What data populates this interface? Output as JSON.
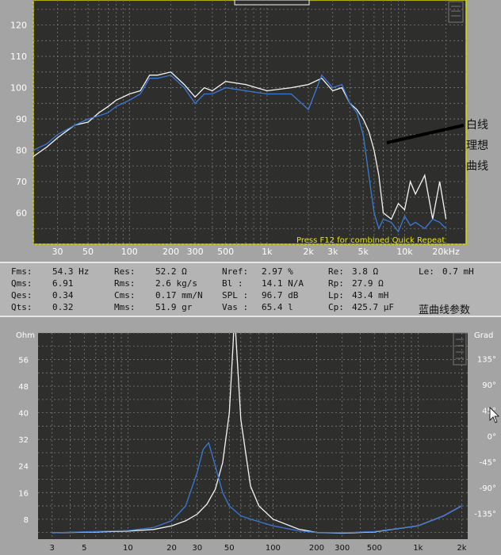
{
  "top_chart": {
    "y_ticks": [
      "120",
      "110",
      "100",
      "90",
      "80",
      "70",
      "60"
    ],
    "x_ticks": [
      "30",
      "50",
      "100",
      "200",
      "300",
      "500",
      "1k",
      "2k",
      "3k",
      "5k",
      "10k",
      "20kHz"
    ],
    "overlay_text": "Press F12 for combined Quick Repeat",
    "annotation": [
      "白线",
      "理想",
      "曲线"
    ]
  },
  "params": {
    "rows": [
      [
        [
          "Fms:",
          "54.3 Hz"
        ],
        [
          "Res:",
          "52.2 Ω"
        ],
        [
          "Nref:",
          "2.97 %"
        ],
        [
          "Re:",
          "3.8 Ω"
        ],
        [
          "Le:",
          "0.7 mH"
        ]
      ],
      [
        [
          "Qms:",
          "6.91"
        ],
        [
          "Rms:",
          "2.6 kg/s"
        ],
        [
          "Bl :",
          "14.1 N/A"
        ],
        [
          "Rp:",
          "27.9 Ω"
        ]
      ],
      [
        [
          "Qes:",
          "0.34"
        ],
        [
          "Cms:",
          "0.17 mm/N"
        ],
        [
          "SPL :",
          "96.7 dB"
        ],
        [
          "Lp:",
          "43.4 mH"
        ]
      ],
      [
        [
          "Qts:",
          "0.32"
        ],
        [
          "Mms:",
          "51.9 gr"
        ],
        [
          "Vas :",
          "65.4 l"
        ],
        [
          "Cp:",
          "425.7 μF"
        ]
      ]
    ],
    "label": "蓝曲线参数"
  },
  "bottom_chart": {
    "left_unit": "Ohm",
    "right_unit": "Grad",
    "y_left": [
      "56",
      "48",
      "40",
      "32",
      "24",
      "16",
      "8"
    ],
    "y_right": [
      "135°",
      "90°",
      "45°",
      "0°",
      "-45°",
      "-90°",
      "-135°"
    ],
    "x_ticks": [
      "3",
      "5",
      "10",
      "20",
      "30",
      "50",
      "100",
      "200",
      "300",
      "500",
      "1k",
      "2k"
    ]
  },
  "chart_data": [
    {
      "type": "line",
      "title": "",
      "xlabel": "",
      "ylabel": "",
      "x_scale": "log",
      "xlim": [
        20,
        28000
      ],
      "ylim": [
        50,
        128
      ],
      "grid": true,
      "series": [
        {
          "color": "#f4f4f4",
          "x": [
            20,
            25,
            30,
            40,
            50,
            60,
            70,
            80,
            100,
            120,
            140,
            160,
            200,
            250,
            300,
            350,
            400,
            500,
            700,
            1000,
            1500,
            2000,
            2500,
            3000,
            3500,
            4000,
            4500,
            5000,
            5500,
            6000,
            6500,
            7000,
            8000,
            9000,
            10000,
            11000,
            12000,
            14000,
            16000,
            18000,
            20000
          ],
          "y": [
            78,
            81,
            84,
            88,
            89,
            92,
            94,
            96,
            98,
            99,
            104,
            104,
            105,
            101,
            97,
            100,
            99,
            102,
            101,
            99,
            100,
            101,
            103,
            99,
            100,
            95,
            93,
            90,
            86,
            80,
            72,
            60,
            58,
            63,
            61,
            70,
            66,
            72,
            58,
            70,
            58
          ]
        },
        {
          "color": "#3a78d8",
          "x": [
            20,
            25,
            30,
            40,
            50,
            60,
            70,
            80,
            100,
            120,
            140,
            160,
            200,
            250,
            300,
            350,
            400,
            500,
            700,
            1000,
            1500,
            2000,
            2500,
            3000,
            3500,
            4000,
            4500,
            5000,
            5500,
            6000,
            6500,
            7000,
            8000,
            9000,
            10000,
            11000,
            12000,
            14000,
            16000,
            18000,
            20000
          ],
          "y": [
            80,
            82,
            85,
            88,
            90,
            91,
            92,
            94,
            96,
            98,
            103,
            103,
            104,
            100,
            95,
            98,
            98,
            100,
            99,
            98,
            98,
            93,
            104,
            100,
            101,
            95,
            92,
            85,
            72,
            60,
            55,
            58,
            57,
            54,
            59,
            56,
            57,
            55,
            58,
            57,
            55
          ]
        }
      ]
    },
    {
      "type": "line",
      "title": "",
      "xlabel": "",
      "ylabel": "Ohm",
      "x_scale": "log",
      "xlim": [
        2.4,
        2200
      ],
      "ylim": [
        2,
        64
      ],
      "grid": true,
      "series": [
        {
          "color": "#f4f4f4",
          "x": [
            3,
            5,
            10,
            15,
            20,
            25,
            30,
            35,
            40,
            45,
            50,
            53,
            54.3,
            56,
            60,
            70,
            80,
            100,
            150,
            200,
            300,
            500,
            1000,
            1500,
            2000
          ],
          "y": [
            3.9,
            4.1,
            4.4,
            4.9,
            6,
            7.5,
            9.5,
            12.5,
            17,
            25,
            40,
            60,
            70,
            60,
            38,
            18,
            12,
            8,
            5,
            4,
            3.8,
            4.2,
            6,
            9,
            12
          ]
        },
        {
          "color": "#3a78d8",
          "x": [
            3,
            5,
            10,
            15,
            20,
            25,
            30,
            33,
            36,
            40,
            45,
            50,
            60,
            70,
            100,
            150,
            200,
            300,
            500,
            1000,
            1500,
            2000
          ],
          "y": [
            3.9,
            4.2,
            4.6,
            5.5,
            7.5,
            12,
            22,
            29,
            31,
            24,
            16,
            12,
            9,
            8,
            6,
            4.5,
            4,
            3.9,
            4.3,
            6,
            9,
            12
          ]
        }
      ]
    }
  ]
}
